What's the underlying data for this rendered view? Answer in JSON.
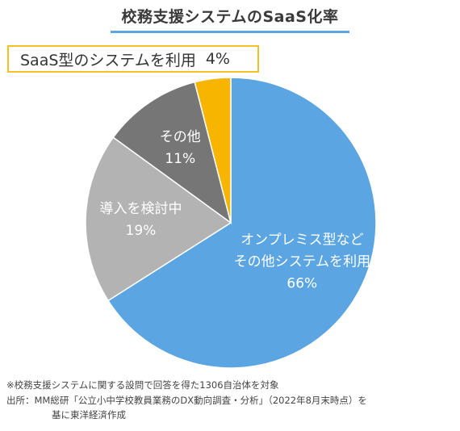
{
  "chart_data": {
    "type": "pie",
    "title": "校務支援システムのSaaS化率",
    "slices": [
      {
        "label_lines": [
          "オンプレミス型など",
          "その他システムを利用"
        ],
        "value": 66,
        "value_label": "66%",
        "color": "#5aa5e2"
      },
      {
        "label_lines": [
          "導入を検討中"
        ],
        "value": 19,
        "value_label": "19%",
        "color": "#b3b3b3"
      },
      {
        "label_lines": [
          "その他"
        ],
        "value": 11,
        "value_label": "11%",
        "color": "#767676"
      },
      {
        "label_lines": [],
        "value": 4,
        "value_label": "",
        "color": "#f8b500"
      }
    ],
    "callout": {
      "text": "SaaS型のシステムを利用",
      "value_label": "4%",
      "border_color": "#f5c024"
    },
    "title_underline_color": "#5aa5e2"
  },
  "footnotes": {
    "note": "※校務支援システムに関する設問で回答を得た1306自治体を対象",
    "source_line1": "出所：MM総研「公立小中学校教員業務のDX動向調査・分析」（2022年8月末時点）を",
    "source_line2": "基に東洋経済作成"
  }
}
